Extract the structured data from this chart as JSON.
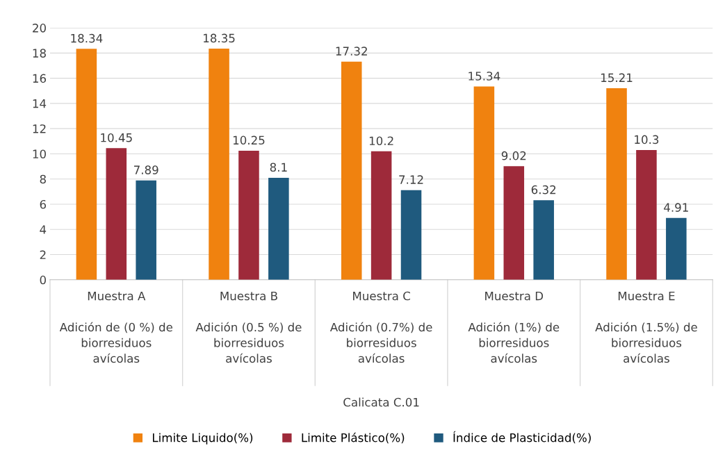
{
  "chart_data": {
    "type": "bar",
    "categories": [
      "Muestra A\n\nAdición de (0 %) de\nbiorresiduos\navícolas",
      "Muestra B\n\nAdición (0.5 %) de\nbiorresiduos\navícolas",
      "Muestra C\n\nAdición (0.7%) de\nbiorresiduos\navícolas",
      "Muestra D\n\nAdición (1%) de\nbiorresiduos\navícolas",
      "Muestra E\n\nAdición (1.5%) de\nbiorresiduos\navícolas"
    ],
    "annotations": [
      "Calicata C.01"
    ],
    "series": [
      {
        "name": "Limite Liquido(%)",
        "color": "#f0820f",
        "values": [
          18.34,
          18.35,
          17.32,
          15.34,
          15.21
        ]
      },
      {
        "name": "Limite Plástico(%)",
        "color": "#9e2a3a",
        "values": [
          10.45,
          10.25,
          10.2,
          9.02,
          10.3
        ]
      },
      {
        "name": "Índice de Plasticidad(%)",
        "color": "#1f5a7e",
        "values": [
          7.89,
          8.1,
          7.12,
          6.32,
          4.91
        ]
      }
    ],
    "ylim": [
      0,
      20
    ],
    "yticks": [
      0,
      2,
      4,
      6,
      8,
      10,
      12,
      14,
      16,
      18,
      20
    ],
    "data_labels": true,
    "grid": true,
    "legend": "bottom"
  }
}
